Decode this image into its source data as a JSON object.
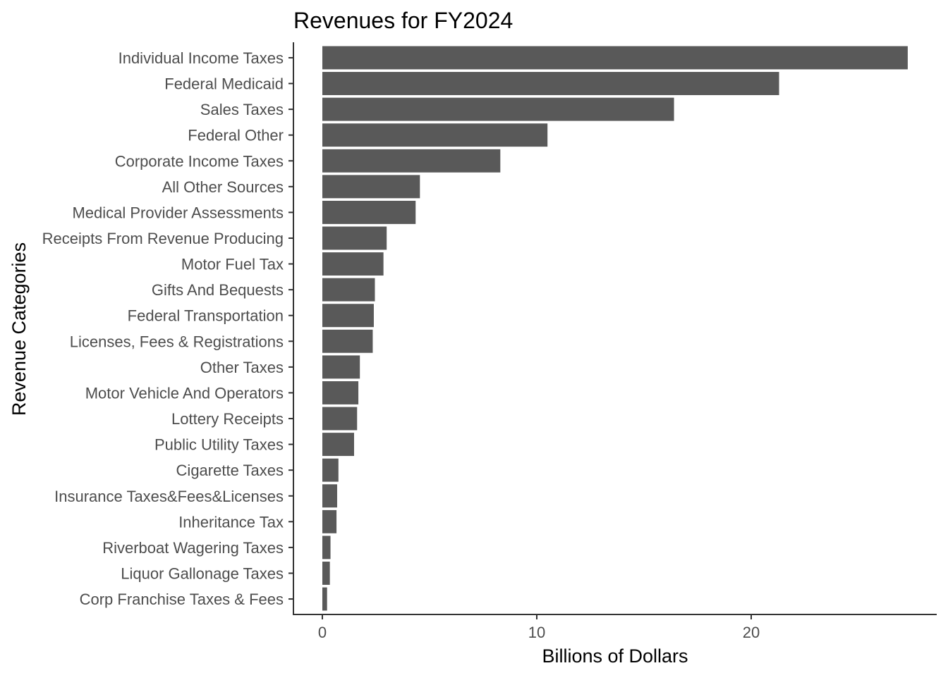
{
  "chart_data": {
    "type": "bar",
    "orientation": "horizontal",
    "title": "Revenues for FY2024",
    "xlabel": "Billions of Dollars",
    "ylabel": "Revenue Categories",
    "xlim": [
      0,
      27.3
    ],
    "xticks": [
      "0",
      "10",
      "20"
    ],
    "xtick_values": [
      0,
      10,
      20
    ],
    "grid": false,
    "bar_color": "#595959",
    "categories": [
      "Individual Income Taxes",
      "Federal Medicaid",
      "Sales Taxes",
      "Federal Other",
      "Corporate Income Taxes",
      "All Other Sources",
      "Medical Provider Assessments",
      "Receipts From Revenue Producing",
      "Motor Fuel Tax",
      "Gifts And Bequests",
      "Federal Transportation",
      "Licenses, Fees & Registrations",
      "Other Taxes",
      "Motor Vehicle And Operators",
      "Lottery Receipts",
      "Public Utility Taxes",
      "Cigarette Taxes",
      "Insurance Taxes&Fees&Licenses",
      "Inheritance Tax",
      "Riverboat Wagering Taxes",
      "Liquor Gallonage Taxes",
      "Corp Franchise Taxes & Fees"
    ],
    "values": [
      27.3,
      21.3,
      16.4,
      10.5,
      8.3,
      4.55,
      4.35,
      3.0,
      2.85,
      2.45,
      2.4,
      2.35,
      1.75,
      1.68,
      1.62,
      1.48,
      0.75,
      0.69,
      0.66,
      0.38,
      0.35,
      0.22
    ]
  }
}
